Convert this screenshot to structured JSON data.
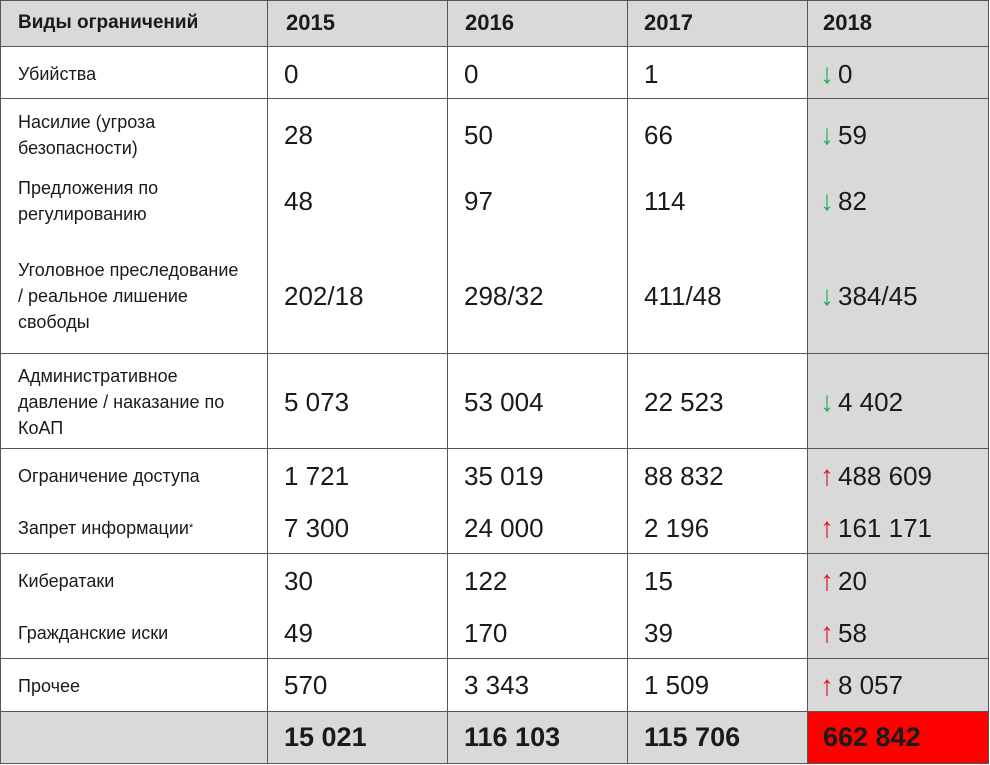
{
  "header": {
    "label": "Виды ограничений",
    "years": [
      "2015",
      "2016",
      "2017",
      "2018"
    ]
  },
  "rows": [
    {
      "label": "Убийства",
      "v2015": "0",
      "v2016": "0",
      "v2017": "1",
      "v2018": "0",
      "trend": "down"
    },
    {
      "label": "Насилие (угроза безопасности)",
      "v2015": "28",
      "v2016": "50",
      "v2017": "66",
      "v2018": "59",
      "trend": "down"
    },
    {
      "label": "Предложения по регулированию",
      "v2015": "48",
      "v2016": "97",
      "v2017": "114",
      "v2018": "82",
      "trend": "down"
    },
    {
      "label": "Уголовное преследование / реальное лишение свободы",
      "v2015": "202/18",
      "v2016": "298/32",
      "v2017": "411/48",
      "v2018": "384/45",
      "trend": "down"
    },
    {
      "label": "Административное давление / наказание по КоАП",
      "v2015": "5 073",
      "v2016": "53 004",
      "v2017": "22 523",
      "v2018": "4 402",
      "trend": "down"
    },
    {
      "label": "Ограничение доступа",
      "v2015": "1 721",
      "v2016": "35 019",
      "v2017": "88 832",
      "v2018": "488 609",
      "trend": "up"
    },
    {
      "label": "Запрет информации",
      "footnote": "*",
      "v2015": "7 300",
      "v2016": "24 000",
      "v2017": "2 196",
      "v2018": "161 171",
      "trend": "up"
    },
    {
      "label": "Кибератаки",
      "v2015": "30",
      "v2016": "122",
      "v2017": "15",
      "v2018": "20",
      "trend": "up"
    },
    {
      "label": "Гражданские иски",
      "v2015": "49",
      "v2016": "170",
      "v2017": "39",
      "v2018": "58",
      "trend": "up"
    },
    {
      "label": "Прочее",
      "v2015": "570",
      "v2016": "3 343",
      "v2017": "1 509",
      "v2018": "8 057",
      "trend": "up"
    }
  ],
  "totals": {
    "v2015": "15 021",
    "v2016": "116 103",
    "v2017": "115 706",
    "v2018": "662 842"
  },
  "colors": {
    "down": "#1db24b",
    "up": "#e0141b",
    "highlight": "#ff0000",
    "shade": "#d9d9d9"
  },
  "icons": {
    "down": "arrow-down-icon",
    "up": "arrow-up-icon"
  }
}
